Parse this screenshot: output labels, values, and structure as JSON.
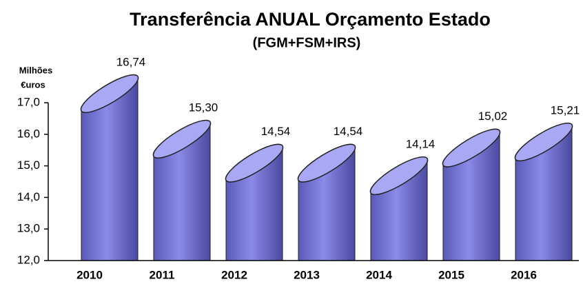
{
  "chart_data": {
    "type": "cylinder",
    "title": "Transferência  ANUAL  Orçamento Estado",
    "subtitle": "(FGM+FSM+IRS)",
    "ylabel_lines": [
      "Milhões",
      "€uros"
    ],
    "categories": [
      "2010",
      "2011",
      "2012",
      "2013",
      "2014",
      "2015",
      "2016"
    ],
    "values": [
      16.74,
      15.3,
      14.54,
      14.54,
      14.14,
      15.02,
      15.21
    ],
    "value_labels": [
      "16,74",
      "15,30",
      "14,54",
      "14,54",
      "14,14",
      "15,02",
      "15,21"
    ],
    "color": "#7c7ce0",
    "ylim": [
      12,
      17
    ],
    "yticks": [
      {
        "value": 12,
        "label": "12,0"
      },
      {
        "value": 13,
        "label": "13,0"
      },
      {
        "value": 14,
        "label": "14,0"
      },
      {
        "value": 15,
        "label": "15,0"
      },
      {
        "value": 16,
        "label": "16,0"
      },
      {
        "value": 17,
        "label": "17,0"
      }
    ]
  }
}
